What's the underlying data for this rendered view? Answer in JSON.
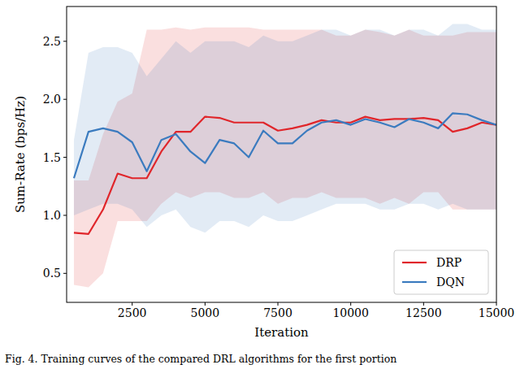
{
  "chart_data": {
    "type": "line",
    "caption": "Fig. 4.  Training curves of the compared DRL algorithms for the first portion",
    "x_label": "Iteration",
    "y_label": "Sum-Rate  (bps/Hz)",
    "x": [
      500,
      1000,
      1500,
      2000,
      2500,
      3000,
      3500,
      4000,
      4500,
      5000,
      5500,
      6000,
      6500,
      7000,
      7500,
      8000,
      8500,
      9000,
      9500,
      10000,
      10500,
      11000,
      11500,
      12000,
      12500,
      13000,
      13500,
      14000,
      14500,
      15000
    ],
    "series": [
      {
        "name": "DRP",
        "color": "#e0262b",
        "values": [
          0.85,
          0.84,
          1.05,
          1.36,
          1.32,
          1.32,
          1.55,
          1.72,
          1.72,
          1.85,
          1.84,
          1.8,
          1.8,
          1.8,
          1.73,
          1.75,
          1.78,
          1.82,
          1.8,
          1.8,
          1.85,
          1.82,
          1.83,
          1.83,
          1.84,
          1.82,
          1.72,
          1.75,
          1.8,
          1.78
        ],
        "lower": [
          0.4,
          0.38,
          0.5,
          0.95,
          0.95,
          0.95,
          1.1,
          1.2,
          1.15,
          1.2,
          1.2,
          1.15,
          1.15,
          1.2,
          1.1,
          1.15,
          1.15,
          1.2,
          1.15,
          1.15,
          1.15,
          1.1,
          1.15,
          1.1,
          1.2,
          1.2,
          1.05,
          1.05,
          1.05,
          1.05
        ],
        "upper": [
          1.3,
          1.3,
          1.7,
          1.98,
          2.05,
          2.6,
          2.6,
          2.62,
          2.6,
          2.62,
          2.62,
          2.62,
          2.62,
          2.6,
          2.6,
          2.6,
          2.6,
          2.6,
          2.55,
          2.55,
          2.6,
          2.58,
          2.55,
          2.6,
          2.55,
          2.55,
          2.55,
          2.58,
          2.58,
          2.58
        ]
      },
      {
        "name": "DQN",
        "color": "#3b7bbf",
        "values": [
          1.32,
          1.72,
          1.75,
          1.72,
          1.63,
          1.38,
          1.65,
          1.7,
          1.55,
          1.45,
          1.65,
          1.62,
          1.5,
          1.73,
          1.62,
          1.62,
          1.73,
          1.8,
          1.82,
          1.78,
          1.83,
          1.8,
          1.76,
          1.83,
          1.8,
          1.75,
          1.88,
          1.87,
          1.82,
          1.78
        ],
        "lower": [
          1.0,
          1.05,
          1.1,
          1.1,
          1.05,
          0.9,
          1.0,
          1.05,
          0.9,
          0.85,
          0.95,
          0.95,
          0.9,
          1.0,
          0.95,
          0.95,
          1.0,
          1.05,
          1.1,
          1.1,
          1.1,
          1.05,
          1.05,
          1.1,
          1.1,
          1.05,
          1.1,
          1.05,
          1.05,
          1.05
        ],
        "upper": [
          1.65,
          2.4,
          2.45,
          2.45,
          2.4,
          2.2,
          2.35,
          2.5,
          2.4,
          2.5,
          2.5,
          2.5,
          2.45,
          2.55,
          2.5,
          2.5,
          2.55,
          2.6,
          2.6,
          2.55,
          2.6,
          2.6,
          2.55,
          2.6,
          2.6,
          2.55,
          2.65,
          2.65,
          2.6,
          2.6
        ]
      }
    ],
    "xlim": [
      250,
      15000
    ],
    "ylim": [
      0.25,
      2.8
    ],
    "xticks": [
      2500,
      5000,
      7500,
      10000,
      12500,
      15000
    ],
    "yticks": [
      0.5,
      {
        "value": 1,
        "label": "1.0"
      },
      1.5,
      {
        "value": 2,
        "label": "2.0"
      },
      2.5
    ],
    "grid": false,
    "legend": "lower right"
  }
}
